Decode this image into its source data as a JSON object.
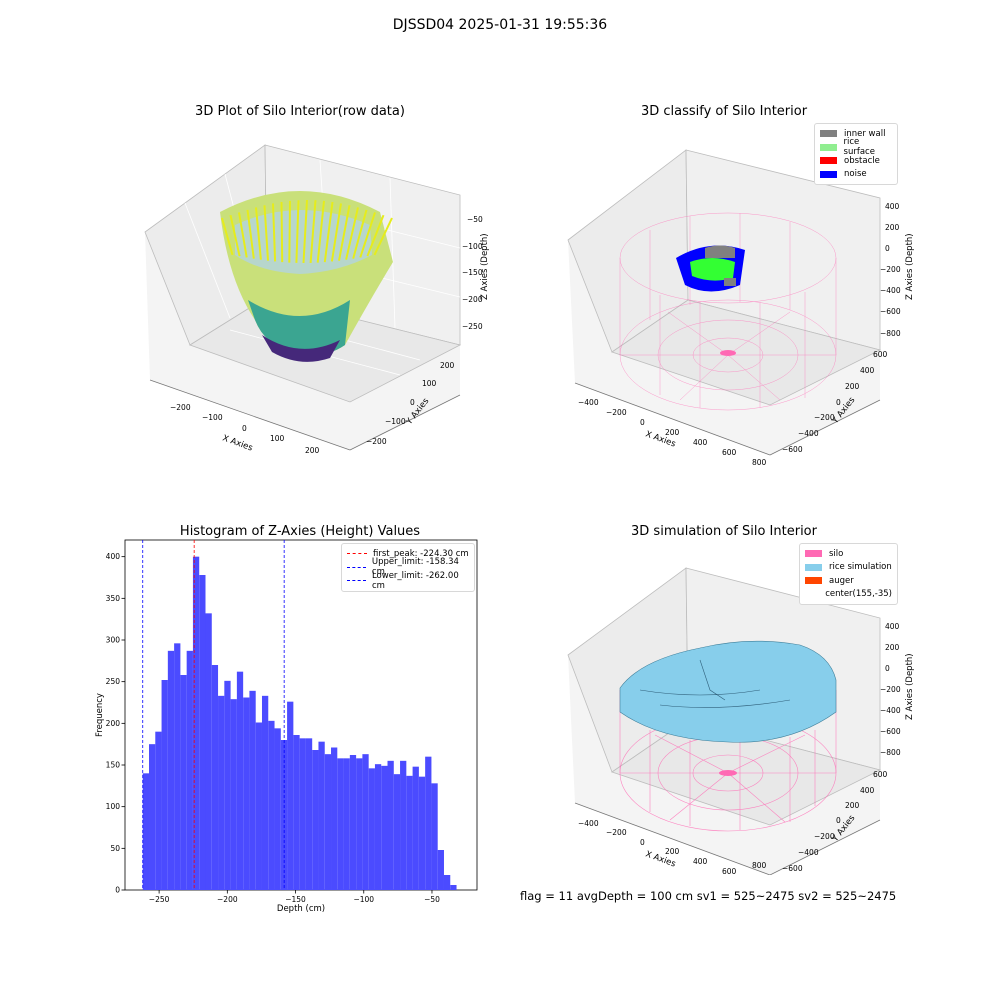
{
  "figure": {
    "title": "DJSSD04 2025-01-31 19:55:36"
  },
  "footer": {
    "text": "flag = 11  avgDepth = 100 cm  sv1 = 525~2475  sv2 = 525~2475"
  },
  "chart_data": [
    {
      "type": "scatter",
      "title": "3D Plot of Silo Interior(row data)",
      "xlabel": "X Axies",
      "ylabel": "Y Axies",
      "zlabel": "Z Axies (Depth)",
      "x_ticks": [
        "−200",
        "−100",
        "0",
        "100",
        "200"
      ],
      "y_ticks": [
        "−200",
        "−100",
        "0",
        "100",
        "200"
      ],
      "z_ticks": [
        "−50",
        "−100",
        "−150",
        "−200",
        "−250"
      ],
      "colormap": "viridis"
    },
    {
      "type": "scatter",
      "title": "3D classify of Silo Interior",
      "xlabel": "X Axies",
      "ylabel": "Y Axies",
      "zlabel": "Z Axies (Depth)",
      "x_ticks": [
        "−400",
        "−200",
        "0",
        "200",
        "400",
        "600",
        "800"
      ],
      "y_ticks": [
        "600",
        "400",
        "200",
        "0",
        "−200",
        "−400",
        "−600"
      ],
      "z_ticks": [
        "400",
        "200",
        "0",
        "−200",
        "−400",
        "−600",
        "−800"
      ],
      "legend": [
        {
          "label": "inner wall",
          "color": "#808080"
        },
        {
          "label": "rice surface",
          "color": "#90ee90"
        },
        {
          "label": "obstacle",
          "color": "#ff0000"
        },
        {
          "label": "noise",
          "color": "#0000ff"
        }
      ],
      "legend_position": "top-right"
    },
    {
      "type": "bar",
      "title": "Histogram of Z-Axies (Height) Values",
      "xlabel": "Depth (cm)",
      "ylabel": "Frequency",
      "xlim": [
        -275,
        -17
      ],
      "ylim": [
        0,
        420
      ],
      "x_ticks": [
        -250,
        -200,
        -150,
        -100,
        -50
      ],
      "y_ticks": [
        0,
        50,
        100,
        150,
        200,
        250,
        300,
        350,
        400
      ],
      "bin_start": -262.0,
      "bin_width": 4.6,
      "bar_color": "#4b4bff",
      "values": [
        140,
        175,
        190,
        252,
        287,
        296,
        258,
        287,
        400,
        378,
        332,
        270,
        233,
        251,
        229,
        262,
        231,
        239,
        201,
        233,
        203,
        194,
        180,
        226,
        186,
        182,
        182,
        168,
        178,
        163,
        171,
        158,
        158,
        162,
        158,
        163,
        146,
        151,
        149,
        155,
        139,
        155,
        137,
        148,
        136,
        160,
        128,
        48,
        18,
        6
      ],
      "lines": [
        {
          "label": "first_peak: -224.30 cm",
          "x": -224.3,
          "color": "#ff0000"
        },
        {
          "label": "Upper_limit: -158.34 cm",
          "x": -158.34,
          "color": "#0000ff"
        },
        {
          "label": "Lower_limit: -262.00 cm",
          "x": -262.0,
          "color": "#0000ff"
        }
      ],
      "legend_position": "top-right"
    },
    {
      "type": "scatter",
      "title": "3D simulation of Silo Interior",
      "xlabel": "X Axies",
      "ylabel": "Y Axies",
      "zlabel": "Z Axies (Depth)",
      "x_ticks": [
        "−400",
        "−200",
        "0",
        "200",
        "400",
        "600",
        "800"
      ],
      "y_ticks": [
        "600",
        "400",
        "200",
        "0",
        "−200",
        "−400",
        "−600"
      ],
      "z_ticks": [
        "400",
        "200",
        "0",
        "−200",
        "−400",
        "−600",
        "−800"
      ],
      "legend": [
        {
          "label": "silo",
          "color": "#ff69b4"
        },
        {
          "label": "rice simulation",
          "color": "#87ceeb"
        },
        {
          "label": "auger",
          "color": "#ff4500"
        },
        {
          "label": "center(155,-35)",
          "color": ""
        }
      ],
      "legend_position": "top-right"
    }
  ]
}
